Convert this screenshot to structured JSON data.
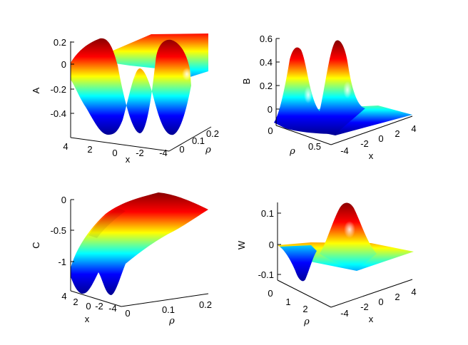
{
  "colors": {
    "colormap": "jet",
    "stops": [
      "#00008f",
      "#0000ff",
      "#00ffff",
      "#ffff00",
      "#ff0000",
      "#800000"
    ]
  },
  "chart_data": [
    {
      "id": "A",
      "type": "surface3d",
      "zlabel": "A",
      "xlabel": "x",
      "ylabel": "ρ",
      "x_ticks": [
        "4",
        "2",
        "0",
        "-2",
        "-4"
      ],
      "y_ticks": [
        "0",
        "0.1",
        "0.2"
      ],
      "z_ticks": [
        "0.2",
        "0",
        "-0.2",
        "-0.4"
      ],
      "xlim": [
        -4,
        4
      ],
      "ylim": [
        0,
        0.25
      ],
      "zlim": [
        -0.55,
        0.22
      ],
      "surface": "two wells near x = ±1.5 at small ρ reaching about -0.55, ridges around 0.2, flattening toward about 0.2 as ρ grows"
    },
    {
      "id": "B",
      "type": "surface3d",
      "zlabel": "B",
      "xlabel": "x",
      "ylabel": "ρ",
      "x_ticks": [
        "-4",
        "-2",
        "0",
        "2",
        "4"
      ],
      "y_ticks": [
        "0",
        "0.5"
      ],
      "z_ticks": [
        "0.6",
        "0.4",
        "0.2",
        "0"
      ],
      "xlim": [
        -4,
        4
      ],
      "ylim": [
        0,
        1
      ],
      "zlim": [
        0,
        0.6
      ],
      "surface": "two peaks near x = ±1.5 at small ρ reaching about 0.55, decaying to 0 elsewhere"
    },
    {
      "id": "C",
      "type": "surface3d",
      "zlabel": "C",
      "xlabel": "x",
      "ylabel": "ρ",
      "x_ticks": [
        "4",
        "2",
        "0",
        "-2",
        "-4"
      ],
      "y_ticks": [
        "0",
        "0.1",
        "0.2"
      ],
      "z_ticks": [
        "0",
        "-0.5",
        "-1"
      ],
      "xlim": [
        -4,
        4
      ],
      "ylim": [
        0,
        0.22
      ],
      "zlim": [
        -1.3,
        0
      ],
      "surface": "two wells near x = ±1.5 at ρ = 0 reaching about -1.3, rising monotonically toward 0 as ρ grows"
    },
    {
      "id": "W",
      "type": "surface3d",
      "zlabel": "W",
      "xlabel": "x",
      "ylabel": "ρ",
      "x_ticks": [
        "-4",
        "-2",
        "0",
        "2",
        "4"
      ],
      "y_ticks": [
        "0",
        "1",
        "2"
      ],
      "z_ticks": [
        "0.1",
        "0",
        "-0.1"
      ],
      "xlim": [
        -4,
        4
      ],
      "ylim": [
        0,
        3
      ],
      "zlim": [
        -0.12,
        0.15
      ],
      "surface": "antisymmetric dipole: a well of about -0.12 near x = -1.5 and a peak of about 0.14 near x = 1.5 at ρ ≈ 1.5, 0 elsewhere"
    }
  ]
}
